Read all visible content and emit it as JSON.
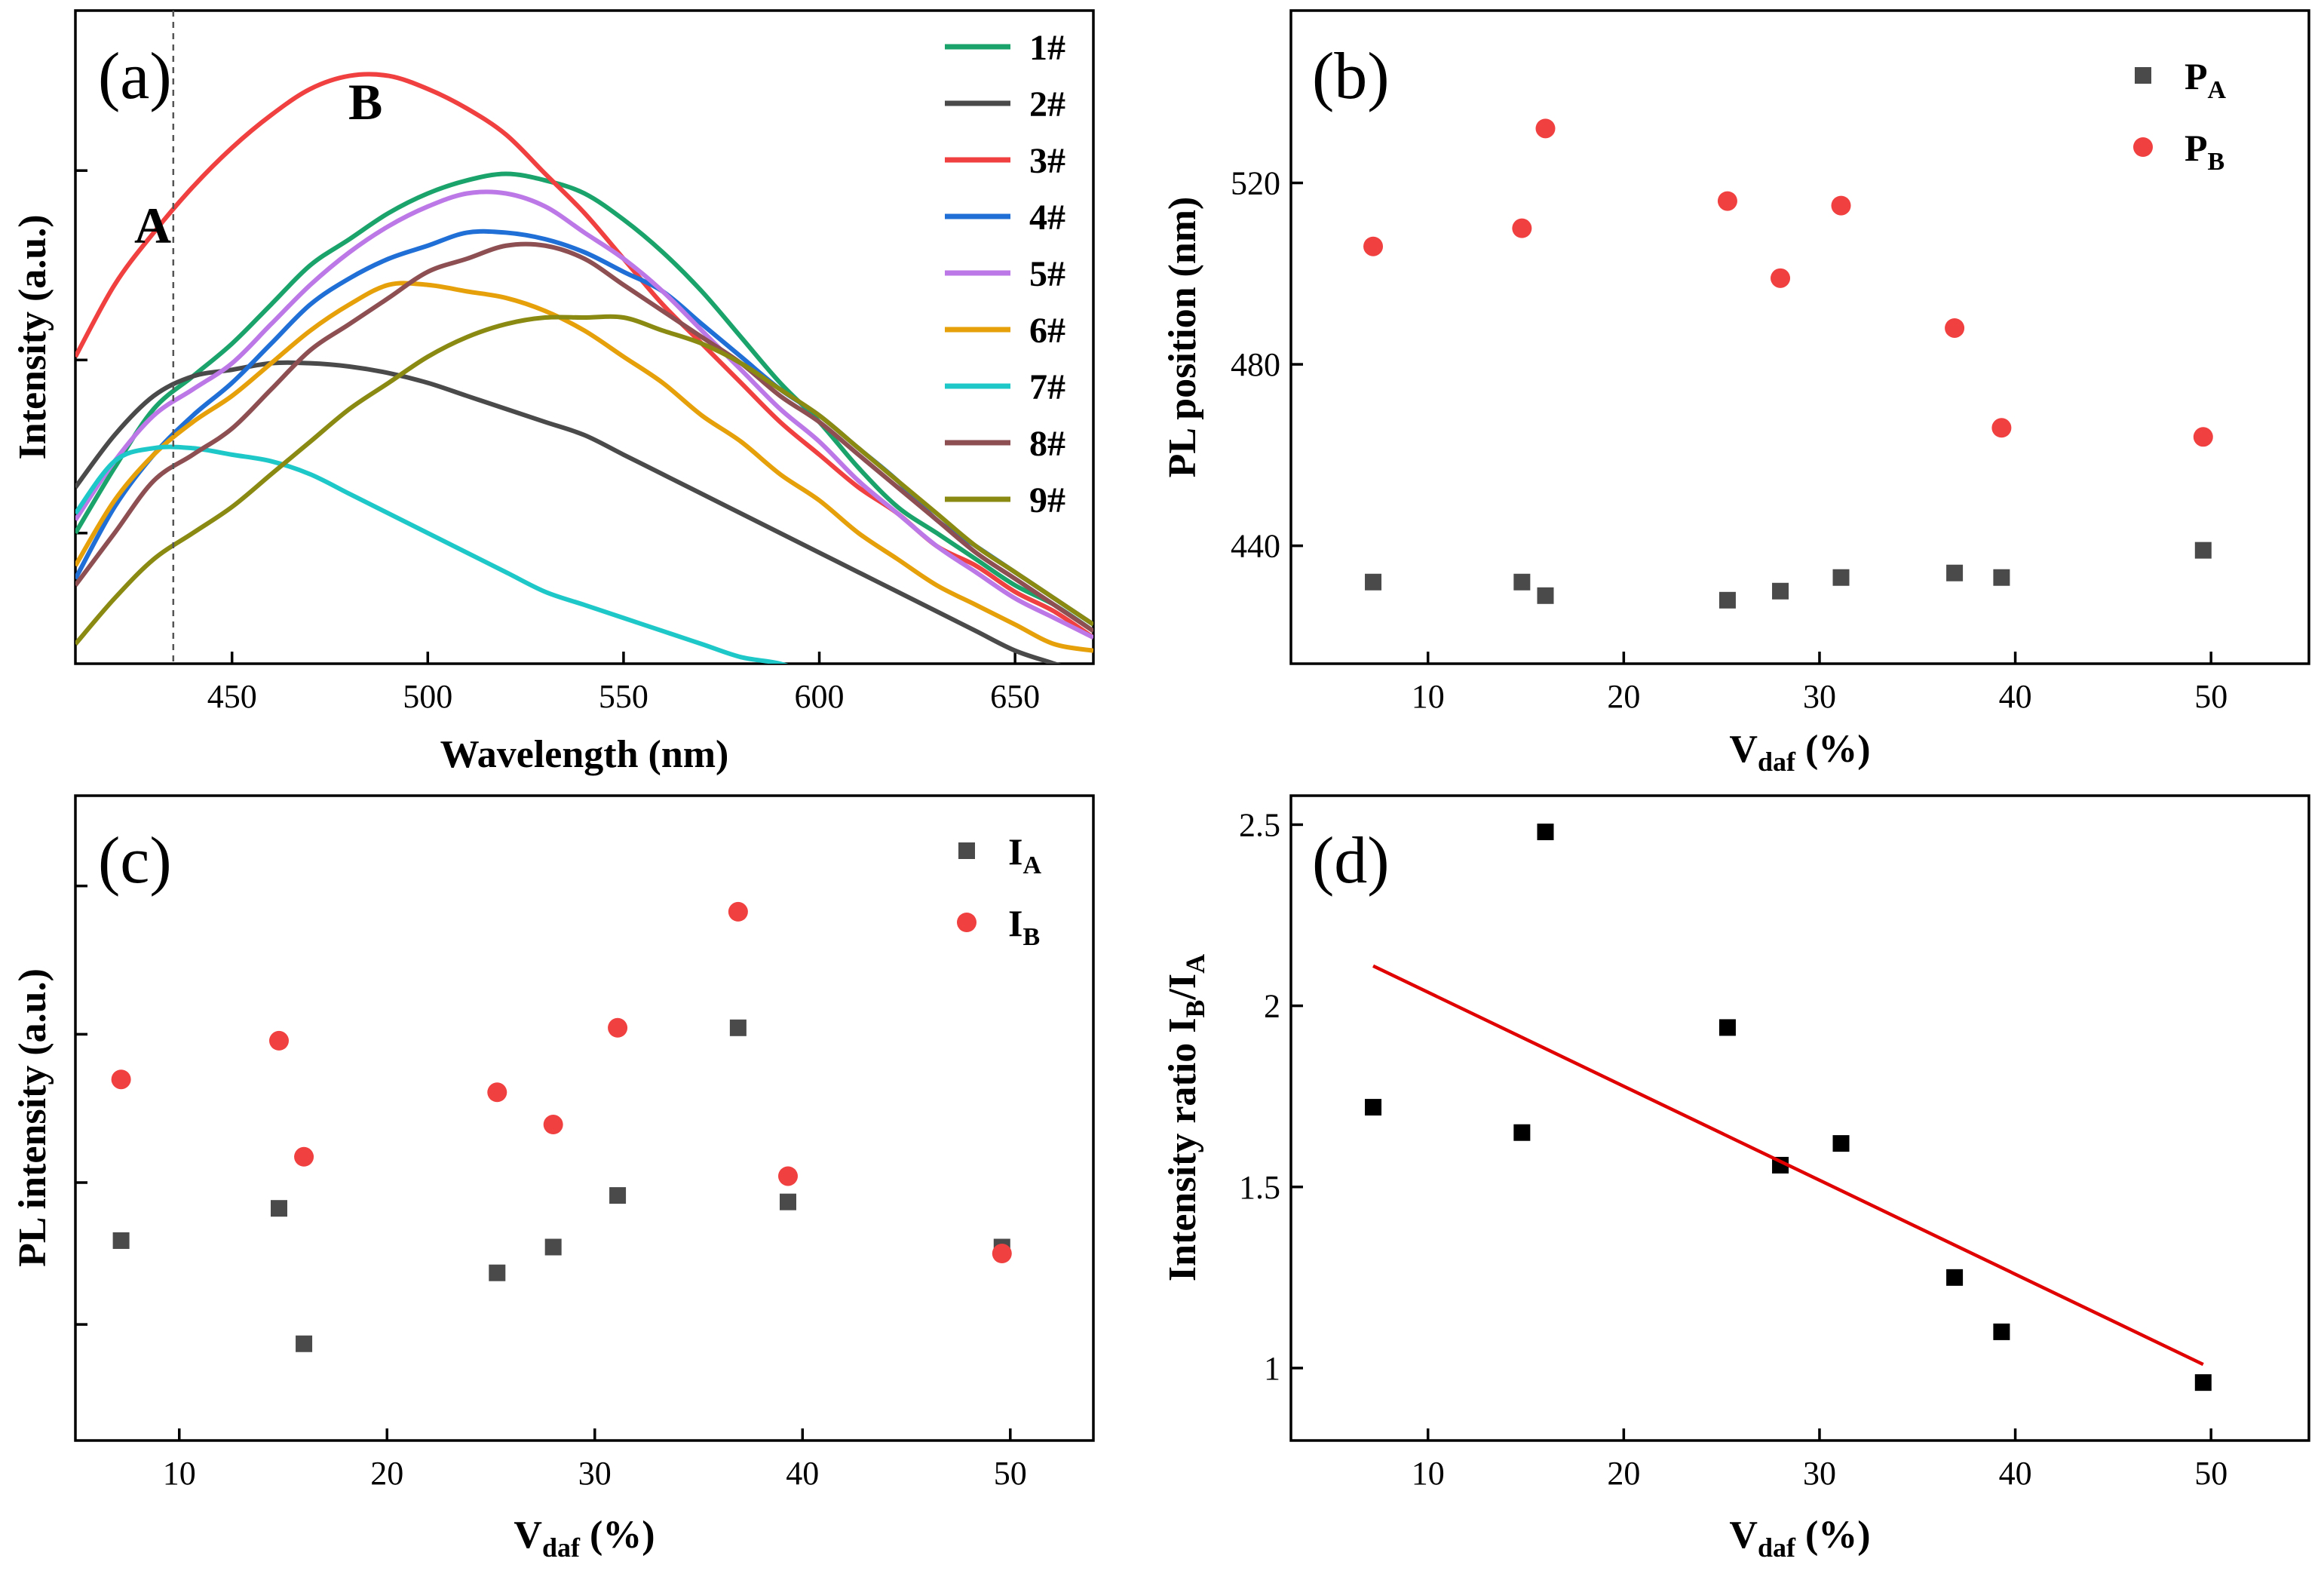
{
  "figure": {
    "panels": [
      "(a)",
      "(b)",
      "(c)",
      "(d)"
    ]
  },
  "chart_data": [
    {
      "id": "a",
      "type": "line",
      "panel_label": "(a)",
      "xlabel": "Wavelength (nm)",
      "ylabel": "Intensity (a.u.)",
      "xlim": [
        410,
        670
      ],
      "ylim": [
        0,
        1.0
      ],
      "xticks": [
        450,
        500,
        550,
        600,
        650
      ],
      "yticks_unlabeled": [
        0.2,
        0.465,
        0.755,
        1.04
      ],
      "annotations": [
        {
          "text": "A",
          "x": 435
        },
        {
          "text": "B",
          "x": 487
        }
      ],
      "vline": 435,
      "series": [
        {
          "name": "1#",
          "color": "#1aa36a",
          "x": [
            410,
            420,
            430,
            440,
            450,
            460,
            470,
            480,
            490,
            500,
            510,
            520,
            530,
            540,
            550,
            560,
            570,
            580,
            590,
            600,
            610,
            620,
            630,
            640,
            650,
            660,
            670
          ],
          "y": [
            0.2,
            0.3,
            0.39,
            0.44,
            0.49,
            0.55,
            0.61,
            0.65,
            0.69,
            0.72,
            0.74,
            0.75,
            0.74,
            0.72,
            0.68,
            0.63,
            0.57,
            0.5,
            0.43,
            0.37,
            0.3,
            0.24,
            0.2,
            0.16,
            0.12,
            0.09,
            0.05
          ]
        },
        {
          "name": "2#",
          "color": "#4a4a4a",
          "x": [
            410,
            420,
            430,
            440,
            450,
            460,
            470,
            480,
            490,
            500,
            510,
            520,
            530,
            540,
            550,
            560,
            570,
            580,
            590,
            600,
            610,
            620,
            630,
            640,
            650,
            660,
            670
          ],
          "y": [
            0.27,
            0.35,
            0.41,
            0.44,
            0.45,
            0.46,
            0.46,
            0.455,
            0.445,
            0.43,
            0.41,
            0.39,
            0.37,
            0.35,
            0.32,
            0.29,
            0.26,
            0.23,
            0.2,
            0.17,
            0.14,
            0.11,
            0.08,
            0.05,
            0.02,
            0.0,
            -0.02
          ]
        },
        {
          "name": "3#",
          "color": "#f04040",
          "x": [
            410,
            420,
            430,
            440,
            450,
            460,
            470,
            480,
            490,
            500,
            510,
            520,
            530,
            540,
            550,
            560,
            570,
            580,
            590,
            600,
            610,
            620,
            630,
            640,
            650,
            660,
            670
          ],
          "y": [
            0.47,
            0.58,
            0.66,
            0.73,
            0.79,
            0.84,
            0.88,
            0.9,
            0.9,
            0.88,
            0.85,
            0.81,
            0.75,
            0.69,
            0.62,
            0.55,
            0.49,
            0.43,
            0.37,
            0.32,
            0.27,
            0.23,
            0.18,
            0.15,
            0.11,
            0.08,
            0.04
          ]
        },
        {
          "name": "4#",
          "color": "#1f6fd6",
          "x": [
            410,
            420,
            430,
            440,
            450,
            460,
            470,
            480,
            490,
            500,
            510,
            520,
            530,
            540,
            550,
            560,
            570,
            580,
            590,
            600,
            610,
            620,
            630,
            640,
            650,
            660,
            670
          ],
          "y": [
            0.13,
            0.24,
            0.32,
            0.38,
            0.43,
            0.49,
            0.55,
            0.59,
            0.62,
            0.64,
            0.66,
            0.66,
            0.65,
            0.63,
            0.6,
            0.57,
            0.52,
            0.47,
            0.42,
            0.38,
            0.33,
            0.28,
            0.22,
            0.18,
            0.14,
            0.1,
            0.06
          ]
        },
        {
          "name": "5#",
          "color": "#bc78e6",
          "x": [
            410,
            420,
            430,
            440,
            450,
            460,
            470,
            480,
            490,
            500,
            510,
            520,
            530,
            540,
            550,
            560,
            570,
            580,
            590,
            600,
            610,
            620,
            630,
            640,
            650,
            660,
            670
          ],
          "y": [
            0.22,
            0.31,
            0.38,
            0.42,
            0.46,
            0.52,
            0.58,
            0.63,
            0.67,
            0.7,
            0.72,
            0.72,
            0.7,
            0.66,
            0.62,
            0.57,
            0.51,
            0.45,
            0.39,
            0.34,
            0.28,
            0.23,
            0.18,
            0.14,
            0.1,
            0.07,
            0.04
          ]
        },
        {
          "name": "6#",
          "color": "#e6a00a",
          "x": [
            410,
            420,
            430,
            440,
            450,
            460,
            470,
            480,
            490,
            500,
            510,
            520,
            530,
            540,
            550,
            560,
            570,
            580,
            590,
            600,
            610,
            620,
            630,
            640,
            650,
            660,
            670
          ],
          "y": [
            0.15,
            0.25,
            0.32,
            0.37,
            0.41,
            0.46,
            0.51,
            0.55,
            0.58,
            0.58,
            0.57,
            0.56,
            0.54,
            0.51,
            0.47,
            0.43,
            0.38,
            0.34,
            0.29,
            0.25,
            0.2,
            0.16,
            0.12,
            0.09,
            0.06,
            0.03,
            0.02
          ]
        },
        {
          "name": "7#",
          "color": "#1ec8c8",
          "x": [
            410,
            420,
            430,
            440,
            450,
            460,
            470,
            480,
            490,
            500,
            510,
            520,
            530,
            540,
            550,
            560,
            570,
            580,
            590,
            600
          ],
          "y": [
            0.23,
            0.31,
            0.33,
            0.33,
            0.32,
            0.31,
            0.29,
            0.26,
            0.23,
            0.2,
            0.17,
            0.14,
            0.11,
            0.09,
            0.07,
            0.05,
            0.03,
            0.01,
            0.0,
            -0.02
          ]
        },
        {
          "name": "8#",
          "color": "#8e4f53",
          "x": [
            410,
            420,
            430,
            440,
            450,
            460,
            470,
            480,
            490,
            500,
            510,
            520,
            530,
            540,
            550,
            560,
            570,
            580,
            590,
            600,
            610,
            620,
            630,
            640,
            650,
            660,
            670
          ],
          "y": [
            0.12,
            0.2,
            0.28,
            0.32,
            0.36,
            0.42,
            0.48,
            0.52,
            0.56,
            0.6,
            0.62,
            0.64,
            0.64,
            0.62,
            0.58,
            0.54,
            0.5,
            0.46,
            0.41,
            0.37,
            0.32,
            0.27,
            0.22,
            0.17,
            0.13,
            0.09,
            0.05
          ]
        },
        {
          "name": "9#",
          "color": "#8a8a12",
          "x": [
            410,
            420,
            430,
            440,
            450,
            460,
            470,
            480,
            490,
            500,
            510,
            520,
            530,
            540,
            550,
            560,
            570,
            580,
            590,
            600,
            610,
            620,
            630,
            640,
            650,
            660,
            670
          ],
          "y": [
            0.03,
            0.1,
            0.16,
            0.2,
            0.24,
            0.29,
            0.34,
            0.39,
            0.43,
            0.47,
            0.5,
            0.52,
            0.53,
            0.53,
            0.53,
            0.51,
            0.49,
            0.46,
            0.42,
            0.38,
            0.33,
            0.28,
            0.23,
            0.18,
            0.14,
            0.1,
            0.06
          ]
        }
      ]
    },
    {
      "id": "b",
      "type": "scatter",
      "panel_label": "(b)",
      "xlabel": "V",
      "xlabel_sub": "daf",
      "xlabel_suffix": " (%)",
      "ylabel": "PL position (nm)",
      "xlim": [
        3,
        55
      ],
      "ylim": [
        414,
        558
      ],
      "xticks": [
        10,
        20,
        30,
        40,
        50
      ],
      "yticks": [
        440,
        480,
        520
      ],
      "series": [
        {
          "name": "P",
          "sub": "A",
          "marker": "square",
          "color": "#4a4a4a",
          "x": [
            7.2,
            14.8,
            16.0,
            25.3,
            28.0,
            31.1,
            36.9,
            39.3,
            49.6
          ],
          "y": [
            432,
            432,
            429,
            428,
            430,
            433,
            434,
            433,
            439
          ]
        },
        {
          "name": "P",
          "sub": "B",
          "marker": "circle",
          "color": "#f04040",
          "x": [
            7.2,
            14.8,
            16.0,
            25.3,
            28.0,
            31.1,
            36.9,
            39.3,
            49.6
          ],
          "y": [
            506,
            510,
            532,
            516,
            499,
            515,
            488,
            466,
            464
          ]
        }
      ]
    },
    {
      "id": "c",
      "type": "scatter",
      "panel_label": "(c)",
      "xlabel": "V",
      "xlabel_sub": "daf",
      "xlabel_suffix": " (%)",
      "ylabel": "PL intensity (a.u.)",
      "xlim": [
        5,
        54
      ],
      "ylim": [
        0,
        10
      ],
      "xticks": [
        10,
        20,
        30,
        40,
        50
      ],
      "yticks_unlabeled": [
        1.8,
        4.0,
        6.3,
        8.6
      ],
      "series": [
        {
          "name": "I",
          "sub": "A",
          "marker": "square",
          "color": "#4a4a4a",
          "x": [
            7.2,
            14.8,
            16.0,
            25.3,
            28.0,
            31.1,
            36.9,
            39.3,
            49.6
          ],
          "y": [
            3.1,
            3.6,
            1.5,
            2.6,
            3.0,
            3.8,
            6.4,
            3.7,
            3.0
          ]
        },
        {
          "name": "I",
          "sub": "B",
          "marker": "circle",
          "color": "#f04040",
          "x": [
            7.2,
            14.8,
            16.0,
            25.3,
            28.0,
            31.1,
            36.9,
            39.3,
            49.6
          ],
          "y": [
            5.6,
            6.2,
            4.4,
            5.4,
            4.9,
            6.4,
            8.2,
            4.1,
            2.9
          ]
        }
      ]
    },
    {
      "id": "d",
      "type": "scatter",
      "panel_label": "(d)",
      "xlabel": "V",
      "xlabel_sub": "daf",
      "xlabel_suffix": " (%)",
      "ylabel": "Intensity ratio I",
      "ylabel_sub1": "B",
      "ylabel_mid": "/I",
      "ylabel_sub2": "A",
      "xlim": [
        3,
        55
      ],
      "ylim": [
        0.8,
        2.58
      ],
      "xticks": [
        10,
        20,
        30,
        40,
        50
      ],
      "yticks": [
        1.0,
        1.5,
        2.0,
        2.5
      ],
      "series": [
        {
          "name": "ratio",
          "marker": "square",
          "color": "#000000",
          "x": [
            7.2,
            14.8,
            16.0,
            25.3,
            28.0,
            31.1,
            36.9,
            39.3,
            49.6
          ],
          "y": [
            1.72,
            1.65,
            2.48,
            1.94,
            1.56,
            1.62,
            1.25,
            1.1,
            0.96
          ]
        }
      ],
      "fit_line": {
        "color": "#e00000",
        "x": [
          7.2,
          49.6
        ],
        "y": [
          2.11,
          1.01
        ]
      }
    }
  ]
}
